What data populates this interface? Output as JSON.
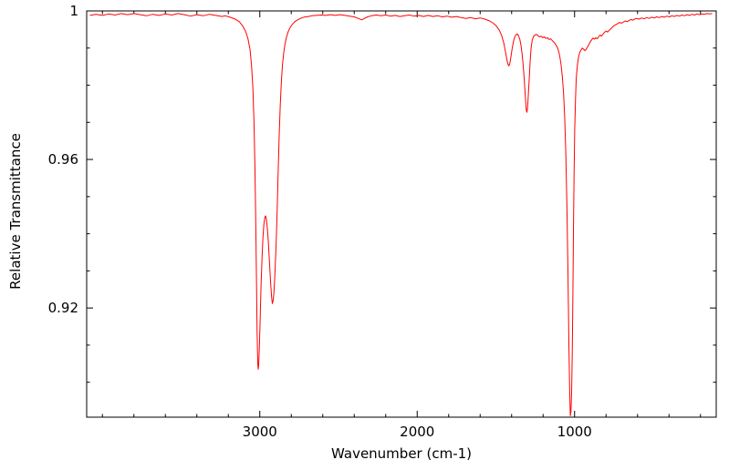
{
  "chart_data": {
    "type": "line",
    "title": "",
    "xlabel": "Wavenumber (cm-1)",
    "ylabel": "Relative Transmittance",
    "xlim": [
      4100,
      100
    ],
    "ylim": [
      0.8906,
      1.0
    ],
    "x_axis_reversed": true,
    "grid": false,
    "legend_position": "none",
    "line_color": "#ff0000",
    "frame_color": "#000000",
    "background_color": "#ffffff",
    "x_ticks": [
      {
        "value": 3000,
        "label": "3000"
      },
      {
        "value": 2000,
        "label": "2000"
      },
      {
        "value": 1000,
        "label": "1000"
      }
    ],
    "x_minor_step": 200,
    "y_ticks": [
      {
        "value": 1,
        "label": "1"
      },
      {
        "value": 0.96,
        "label": "0.96"
      },
      {
        "value": 0.92,
        "label": "0.92"
      }
    ],
    "y_minor_step": 0.01,
    "series": [
      {
        "name": "transmittance",
        "points": [
          [
            4080,
            0.9988
          ],
          [
            4040,
            0.9991
          ],
          [
            4000,
            0.9988
          ],
          [
            3960,
            0.9992
          ],
          [
            3920,
            0.9989
          ],
          [
            3880,
            0.9993
          ],
          [
            3840,
            0.999
          ],
          [
            3800,
            0.9993
          ],
          [
            3760,
            0.999
          ],
          [
            3720,
            0.9987
          ],
          [
            3680,
            0.9991
          ],
          [
            3640,
            0.9988
          ],
          [
            3600,
            0.9992
          ],
          [
            3560,
            0.9989
          ],
          [
            3520,
            0.9993
          ],
          [
            3480,
            0.999
          ],
          [
            3440,
            0.9986
          ],
          [
            3400,
            0.999
          ],
          [
            3360,
            0.9987
          ],
          [
            3320,
            0.9991
          ],
          [
            3280,
            0.9988
          ],
          [
            3240,
            0.9985
          ],
          [
            3220,
            0.9987
          ],
          [
            3190,
            0.9983
          ],
          [
            3160,
            0.9979
          ],
          [
            3130,
            0.9971
          ],
          [
            3110,
            0.996
          ],
          [
            3090,
            0.9945
          ],
          [
            3075,
            0.9925
          ],
          [
            3062,
            0.9895
          ],
          [
            3052,
            0.985
          ],
          [
            3044,
            0.979
          ],
          [
            3037,
            0.97
          ],
          [
            3031,
            0.958
          ],
          [
            3026,
            0.9435
          ],
          [
            3021,
            0.9275
          ],
          [
            3017,
            0.9135
          ],
          [
            3013,
            0.9052
          ],
          [
            3010,
            0.9035
          ],
          [
            3007,
            0.9045
          ],
          [
            3003,
            0.909
          ],
          [
            2998,
            0.9165
          ],
          [
            2992,
            0.926
          ],
          [
            2986,
            0.9335
          ],
          [
            2980,
            0.939
          ],
          [
            2974,
            0.9425
          ],
          [
            2968,
            0.9445
          ],
          [
            2963,
            0.9448
          ],
          [
            2958,
            0.9438
          ],
          [
            2952,
            0.9415
          ],
          [
            2945,
            0.9375
          ],
          [
            2938,
            0.932
          ],
          [
            2931,
            0.9265
          ],
          [
            2925,
            0.9228
          ],
          [
            2920,
            0.9212
          ],
          [
            2916,
            0.9218
          ],
          [
            2911,
            0.9238
          ],
          [
            2905,
            0.928
          ],
          [
            2898,
            0.935
          ],
          [
            2891,
            0.9445
          ],
          [
            2884,
            0.956
          ],
          [
            2877,
            0.9665
          ],
          [
            2870,
            0.9748
          ],
          [
            2863,
            0.981
          ],
          [
            2856,
            0.9855
          ],
          [
            2848,
            0.9888
          ],
          [
            2840,
            0.9912
          ],
          [
            2830,
            0.993
          ],
          [
            2820,
            0.9944
          ],
          [
            2808,
            0.9955
          ],
          [
            2795,
            0.9963
          ],
          [
            2780,
            0.997
          ],
          [
            2764,
            0.9975
          ],
          [
            2746,
            0.9979
          ],
          [
            2728,
            0.9982
          ],
          [
            2710,
            0.9984
          ],
          [
            2690,
            0.9985
          ],
          [
            2670,
            0.9987
          ],
          [
            2640,
            0.9988
          ],
          [
            2610,
            0.9989
          ],
          [
            2580,
            0.9988
          ],
          [
            2550,
            0.999
          ],
          [
            2520,
            0.9988
          ],
          [
            2490,
            0.999
          ],
          [
            2460,
            0.9988
          ],
          [
            2430,
            0.9986
          ],
          [
            2400,
            0.9984
          ],
          [
            2375,
            0.998
          ],
          [
            2352,
            0.9976
          ],
          [
            2335,
            0.998
          ],
          [
            2315,
            0.9984
          ],
          [
            2290,
            0.9987
          ],
          [
            2260,
            0.9989
          ],
          [
            2230,
            0.9987
          ],
          [
            2200,
            0.9989
          ],
          [
            2170,
            0.9986
          ],
          [
            2140,
            0.9988
          ],
          [
            2110,
            0.9985
          ],
          [
            2080,
            0.9987
          ],
          [
            2050,
            0.9989
          ],
          [
            2020,
            0.9986
          ],
          [
            1990,
            0.9988
          ],
          [
            1960,
            0.9985
          ],
          [
            1930,
            0.9988
          ],
          [
            1900,
            0.9985
          ],
          [
            1870,
            0.9987
          ],
          [
            1840,
            0.9984
          ],
          [
            1810,
            0.9986
          ],
          [
            1780,
            0.9983
          ],
          [
            1750,
            0.9985
          ],
          [
            1720,
            0.9982
          ],
          [
            1690,
            0.998
          ],
          [
            1660,
            0.9982
          ],
          [
            1630,
            0.9979
          ],
          [
            1600,
            0.9981
          ],
          [
            1570,
            0.9978
          ],
          [
            1545,
            0.9974
          ],
          [
            1520,
            0.9968
          ],
          [
            1498,
            0.996
          ],
          [
            1478,
            0.9948
          ],
          [
            1462,
            0.9932
          ],
          [
            1449,
            0.9912
          ],
          [
            1439,
            0.989
          ],
          [
            1430,
            0.9868
          ],
          [
            1423,
            0.9856
          ],
          [
            1417,
            0.9852
          ],
          [
            1411,
            0.986
          ],
          [
            1404,
            0.9878
          ],
          [
            1396,
            0.99
          ],
          [
            1388,
            0.9918
          ],
          [
            1380,
            0.993
          ],
          [
            1372,
            0.9936
          ],
          [
            1364,
            0.9938
          ],
          [
            1356,
            0.9933
          ],
          [
            1348,
            0.9924
          ],
          [
            1341,
            0.9909
          ],
          [
            1334,
            0.9887
          ],
          [
            1327,
            0.9858
          ],
          [
            1320,
            0.9818
          ],
          [
            1313,
            0.9768
          ],
          [
            1307,
            0.9733
          ],
          [
            1303,
            0.9727
          ],
          [
            1299,
            0.9739
          ],
          [
            1294,
            0.9772
          ],
          [
            1288,
            0.982
          ],
          [
            1282,
            0.9866
          ],
          [
            1276,
            0.99
          ],
          [
            1269,
            0.9921
          ],
          [
            1261,
            0.9931
          ],
          [
            1252,
            0.9935
          ],
          [
            1242,
            0.9937
          ],
          [
            1232,
            0.9933
          ],
          [
            1222,
            0.993
          ],
          [
            1212,
            0.9932
          ],
          [
            1202,
            0.9928
          ],
          [
            1192,
            0.993
          ],
          [
            1182,
            0.9926
          ],
          [
            1172,
            0.9928
          ],
          [
            1162,
            0.9923
          ],
          [
            1152,
            0.9925
          ],
          [
            1142,
            0.992
          ],
          [
            1132,
            0.9916
          ],
          [
            1122,
            0.9911
          ],
          [
            1112,
            0.9904
          ],
          [
            1103,
            0.9894
          ],
          [
            1094,
            0.9878
          ],
          [
            1086,
            0.9856
          ],
          [
            1078,
            0.9824
          ],
          [
            1070,
            0.9778
          ],
          [
            1063,
            0.9715
          ],
          [
            1056,
            0.962
          ],
          [
            1049,
            0.948
          ],
          [
            1042,
            0.9295
          ],
          [
            1036,
            0.9105
          ],
          [
            1031,
            0.8975
          ],
          [
            1027,
            0.891
          ],
          [
            1023,
            0.8922
          ],
          [
            1019,
            0.8972
          ],
          [
            1015,
            0.9075
          ],
          [
            1011,
            0.9235
          ],
          [
            1007,
            0.9405
          ],
          [
            1003,
            0.956
          ],
          [
            999,
            0.968
          ],
          [
            994,
            0.9765
          ],
          [
            989,
            0.982
          ],
          [
            982,
            0.9855
          ],
          [
            975,
            0.9876
          ],
          [
            967,
            0.9888
          ],
          [
            959,
            0.9895
          ],
          [
            951,
            0.99
          ],
          [
            943,
            0.9897
          ],
          [
            935,
            0.9893
          ],
          [
            927,
            0.9896
          ],
          [
            919,
            0.9902
          ],
          [
            910,
            0.9909
          ],
          [
            901,
            0.9916
          ],
          [
            892,
            0.9922
          ],
          [
            883,
            0.9927
          ],
          [
            874,
            0.9924
          ],
          [
            865,
            0.9928
          ],
          [
            856,
            0.9925
          ],
          [
            847,
            0.993
          ],
          [
            838,
            0.9935
          ],
          [
            829,
            0.9932
          ],
          [
            820,
            0.9937
          ],
          [
            810,
            0.9942
          ],
          [
            800,
            0.9946
          ],
          [
            790,
            0.9943
          ],
          [
            780,
            0.9948
          ],
          [
            770,
            0.9952
          ],
          [
            760,
            0.9956
          ],
          [
            750,
            0.996
          ],
          [
            738,
            0.9963
          ],
          [
            726,
            0.9966
          ],
          [
            714,
            0.9969
          ],
          [
            702,
            0.9967
          ],
          [
            690,
            0.997
          ],
          [
            678,
            0.9973
          ],
          [
            666,
            0.9971
          ],
          [
            654,
            0.9974
          ],
          [
            642,
            0.9977
          ],
          [
            630,
            0.9975
          ],
          [
            618,
            0.9978
          ],
          [
            606,
            0.998
          ],
          [
            590,
            0.9978
          ],
          [
            574,
            0.9981
          ],
          [
            558,
            0.9979
          ],
          [
            542,
            0.9982
          ],
          [
            526,
            0.998
          ],
          [
            510,
            0.9983
          ],
          [
            494,
            0.9981
          ],
          [
            478,
            0.9984
          ],
          [
            462,
            0.9982
          ],
          [
            446,
            0.9985
          ],
          [
            430,
            0.9983
          ],
          [
            414,
            0.9986
          ],
          [
            398,
            0.9984
          ],
          [
            382,
            0.9987
          ],
          [
            366,
            0.9985
          ],
          [
            350,
            0.9988
          ],
          [
            334,
            0.9986
          ],
          [
            318,
            0.9989
          ],
          [
            302,
            0.9987
          ],
          [
            286,
            0.999
          ],
          [
            270,
            0.9988
          ],
          [
            254,
            0.9991
          ],
          [
            238,
            0.9989
          ],
          [
            222,
            0.9992
          ],
          [
            206,
            0.999
          ],
          [
            190,
            0.9992
          ],
          [
            174,
            0.9991
          ],
          [
            158,
            0.9993
          ],
          [
            142,
            0.9992
          ],
          [
            126,
            0.9993
          ]
        ]
      }
    ]
  }
}
